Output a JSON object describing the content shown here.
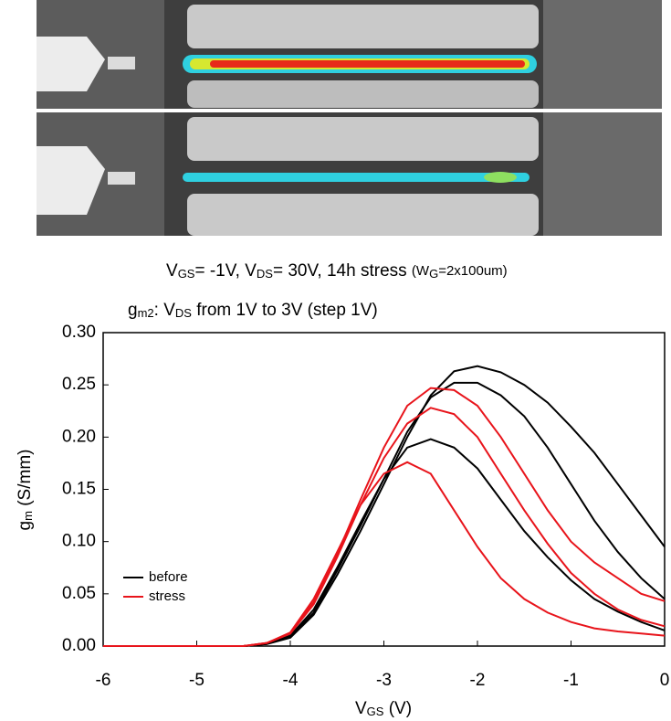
{
  "chart_data": {
    "type": "line",
    "stress_note": [
      {
        "t": "V"
      },
      {
        "sub": "GS"
      },
      {
        "t": "= -1V, V"
      },
      {
        "sub": "DS"
      },
      {
        "t": "= 30V, 14h stress "
      },
      {
        "small": "(W"
      },
      {
        "sub": "G"
      },
      {
        "small": "=2x100um)"
      }
    ],
    "title": [
      {
        "t": "g"
      },
      {
        "sub": "m2"
      },
      {
        "t": ":        V"
      },
      {
        "sub": "DS"
      },
      {
        "t": " from 1V  to 3V (step 1V)"
      }
    ],
    "y_label": [
      {
        "t": "g"
      },
      {
        "sub": "m"
      },
      {
        "t": " (S/mm)"
      }
    ],
    "x_label": [
      {
        "t": "V"
      },
      {
        "sub": "GS"
      },
      {
        "t": " (V)"
      }
    ],
    "x": [
      -6,
      -5.75,
      -5.5,
      -5.25,
      -5,
      -4.75,
      -4.5,
      -4.25,
      -4,
      -3.75,
      -3.5,
      -3.25,
      -3,
      -2.75,
      -2.5,
      -2.25,
      -2,
      -1.75,
      -1.5,
      -1.25,
      -1,
      -0.75,
      -0.5,
      -0.25,
      0
    ],
    "series": [
      {
        "name": "before",
        "color": "#000000",
        "values": [
          [
            0,
            0,
            0,
            0,
            0,
            0,
            0,
            0.002,
            0.008,
            0.03,
            0.068,
            0.11,
            0.155,
            0.2,
            0.24,
            0.263,
            0.268,
            0.262,
            0.25,
            0.233,
            0.21,
            0.185,
            0.155,
            0.125,
            0.095
          ],
          [
            0,
            0,
            0,
            0,
            0,
            0,
            0,
            0.002,
            0.009,
            0.032,
            0.072,
            0.115,
            0.16,
            0.205,
            0.238,
            0.252,
            0.252,
            0.24,
            0.22,
            0.19,
            0.155,
            0.12,
            0.09,
            0.065,
            0.045
          ],
          [
            0,
            0,
            0,
            0,
            0,
            0,
            0,
            0.002,
            0.01,
            0.035,
            0.075,
            0.118,
            0.16,
            0.19,
            0.198,
            0.19,
            0.17,
            0.14,
            0.11,
            0.085,
            0.063,
            0.045,
            0.033,
            0.023,
            0.015
          ]
        ]
      },
      {
        "name": "stress",
        "color": "#e8141b",
        "values": [
          [
            0,
            0,
            0,
            0,
            0,
            0,
            0,
            0.003,
            0.012,
            0.042,
            0.088,
            0.14,
            0.19,
            0.23,
            0.247,
            0.245,
            0.23,
            0.2,
            0.165,
            0.13,
            0.1,
            0.08,
            0.065,
            0.05,
            0.043
          ],
          [
            0,
            0,
            0,
            0,
            0,
            0,
            0,
            0.003,
            0.012,
            0.04,
            0.085,
            0.135,
            0.18,
            0.213,
            0.228,
            0.222,
            0.2,
            0.165,
            0.13,
            0.098,
            0.07,
            0.05,
            0.035,
            0.025,
            0.019
          ],
          [
            0,
            0,
            0,
            0,
            0,
            0,
            0,
            0.003,
            0.013,
            0.045,
            0.09,
            0.135,
            0.165,
            0.176,
            0.165,
            0.13,
            0.095,
            0.065,
            0.045,
            0.032,
            0.023,
            0.017,
            0.014,
            0.012,
            0.01
          ]
        ]
      }
    ],
    "xlim": [
      -6,
      0
    ],
    "ylim": [
      0,
      0.3
    ],
    "xticks": [
      -6,
      -5,
      -4,
      -3,
      -2,
      -1,
      0
    ],
    "yticks": [
      {
        "value": 0,
        "label": "0.00"
      },
      {
        "value": 0.05,
        "label": "0.05"
      },
      {
        "value": 0.1,
        "label": "0.10"
      },
      {
        "value": 0.15,
        "label": "0.15"
      },
      {
        "value": 0.2,
        "label": "0.20"
      },
      {
        "value": 0.25,
        "label": "0.25"
      },
      {
        "value": 0.3,
        "label": "0.30"
      }
    ],
    "legend": "lower left"
  }
}
